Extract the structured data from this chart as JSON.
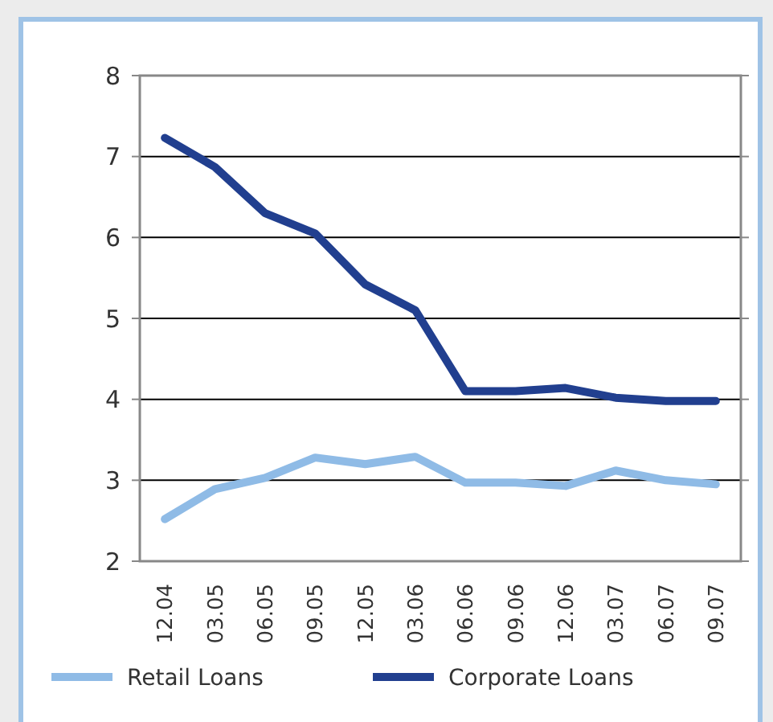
{
  "chart_data": {
    "type": "line",
    "categories": [
      "12.04",
      "03.05",
      "06.05",
      "09.05",
      "12.05",
      "03.06",
      "06.06",
      "09.06",
      "12.06",
      "03.07",
      "06.07",
      "09.07"
    ],
    "series": [
      {
        "name": "Retail Loans",
        "color": "#8fbbe6",
        "values": [
          2.52,
          2.89,
          3.03,
          3.28,
          3.2,
          3.29,
          2.97,
          2.97,
          2.93,
          3.12,
          3.0,
          2.95
        ]
      },
      {
        "name": "Corporate Loans",
        "color": "#213f8f",
        "values": [
          7.23,
          6.87,
          6.3,
          6.05,
          5.42,
          5.1,
          4.1,
          4.1,
          4.14,
          4.02,
          3.98,
          3.98
        ]
      }
    ],
    "ylim": [
      2,
      8
    ],
    "yticks": [
      2,
      3,
      4,
      5,
      6,
      7,
      8
    ],
    "grid": "y",
    "legend": "bottom",
    "marker": "none",
    "line_style": "solid"
  }
}
